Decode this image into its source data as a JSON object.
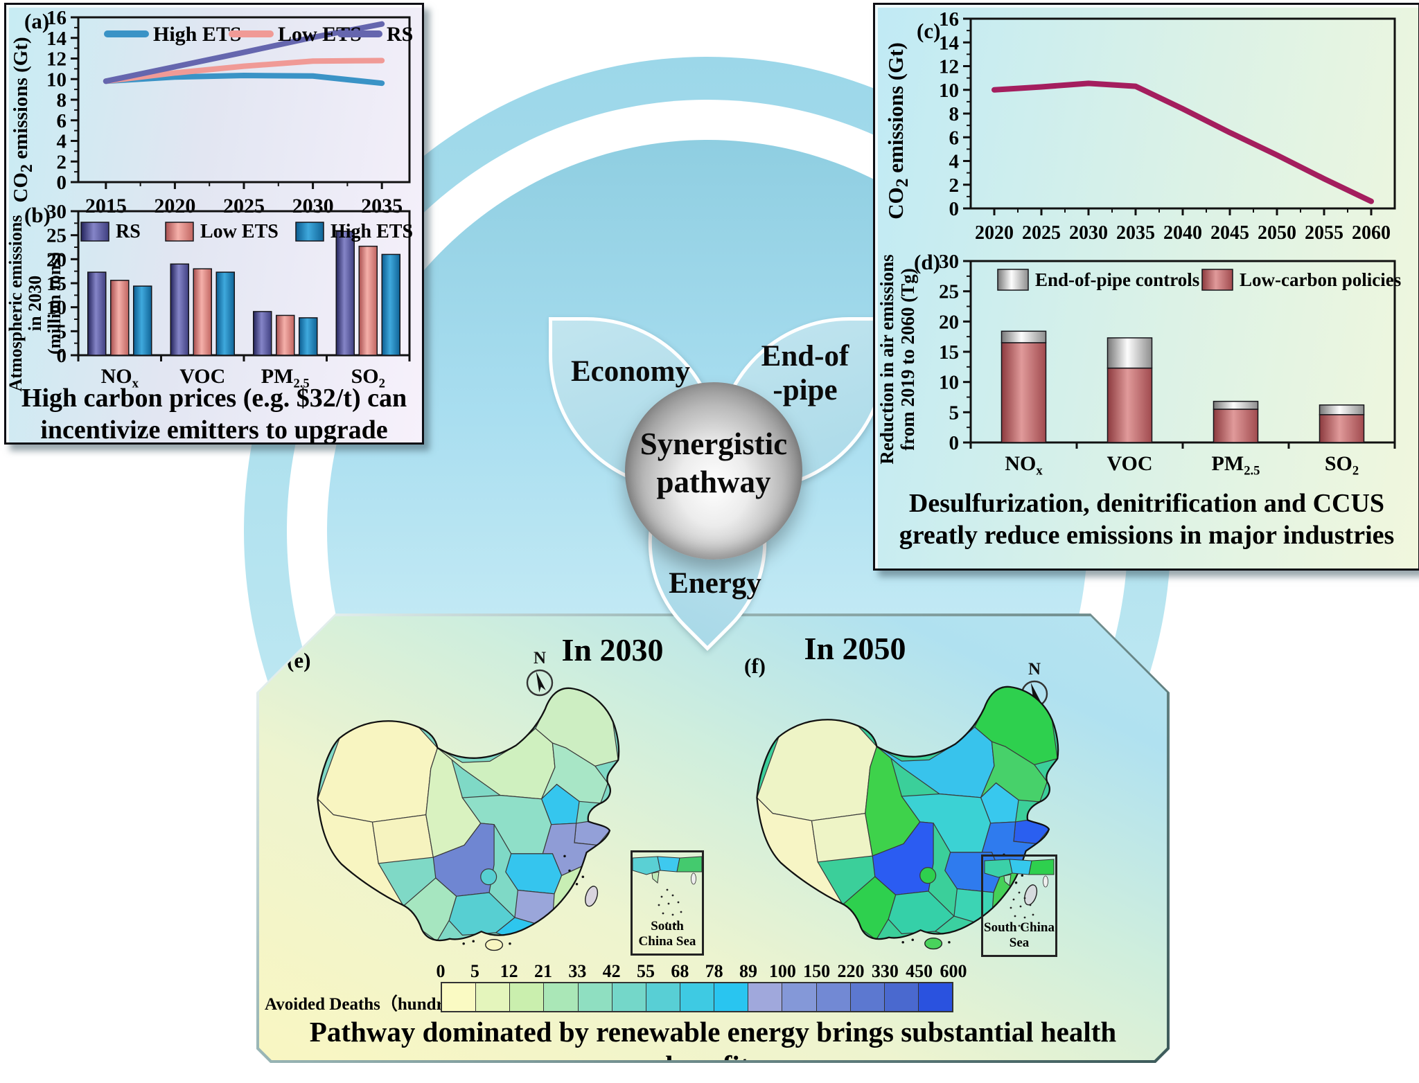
{
  "center": {
    "sphere_lines": [
      "Synergistic",
      "pathway"
    ],
    "petal_economy": "Economy",
    "petal_endpipe_lines": [
      "End-of",
      "-pipe"
    ],
    "petal_energy": "Energy"
  },
  "captions": {
    "left": "High carbon prices (e.g. $32/t) can incentivize emitters to upgrade",
    "right": "Desulfurization, denitrification and CCUS greatly reduce emissions in major industries",
    "bottom": "Pathway dominated by renewable energy brings substantial health benefits"
  },
  "chart_data": [
    {
      "id": "a",
      "type": "line",
      "panel_label": "(a)",
      "ylabel": "CO_2 emissions (Gt)",
      "x": [
        2015,
        2020,
        2025,
        2030,
        2035
      ],
      "xlim": [
        2013,
        2037
      ],
      "ylim": [
        0,
        16
      ],
      "ytick_step": 2,
      "legend_position": "top-inside",
      "grid": false,
      "series": [
        {
          "name": "High ETS",
          "color": "#3a93c6",
          "values": [
            9.8,
            10.2,
            10.35,
            10.3,
            9.6
          ]
        },
        {
          "name": "Low ETS",
          "color": "#f09a96",
          "values": [
            9.8,
            10.6,
            11.25,
            11.75,
            11.8
          ]
        },
        {
          "name": "RS",
          "color": "#6566ae",
          "values": [
            9.8,
            11.2,
            12.6,
            14.05,
            15.35
          ]
        }
      ]
    },
    {
      "id": "b",
      "type": "bar",
      "panel_label": "(b)",
      "ylabel_lines": [
        "Atmospheric emissions in 2030",
        "(million tons)"
      ],
      "categories": [
        "NO_x",
        "VOC",
        "PM_2.5",
        "SO_2"
      ],
      "ylim": [
        0,
        30
      ],
      "ytick_step": 5,
      "grid": false,
      "series": [
        {
          "name": "RS",
          "grad": [
            "#23235a",
            "#8585c8",
            "#3f3f80"
          ],
          "values": [
            17.3,
            19.0,
            9.1,
            25.8
          ]
        },
        {
          "name": "Low ETS",
          "grad": [
            "#a84f4f",
            "#f5b0aa",
            "#c06460"
          ],
          "values": [
            15.6,
            18.0,
            8.3,
            22.7
          ]
        },
        {
          "name": "High ETS",
          "grad": [
            "#0b5c90",
            "#3fa9dd",
            "#0f6396"
          ],
          "values": [
            14.4,
            17.3,
            7.8,
            21.0
          ]
        }
      ]
    },
    {
      "id": "c",
      "type": "line",
      "panel_label": "(c)",
      "ylabel": "CO_2 emissions (Gt)",
      "x": [
        2020,
        2025,
        2030,
        2035,
        2040,
        2045,
        2050,
        2055,
        2060
      ],
      "xlim": [
        2017.5,
        2062.5
      ],
      "ylim": [
        0,
        16
      ],
      "ytick_step": 2,
      "grid": false,
      "series": [
        {
          "name": "Synergistic pathway",
          "color": "#a41e5e",
          "values": [
            10.0,
            10.25,
            10.55,
            10.3,
            8.4,
            6.4,
            4.5,
            2.5,
            0.6
          ]
        }
      ]
    },
    {
      "id": "d",
      "type": "stacked-bar",
      "panel_label": "(d)",
      "ylabel_lines": [
        "Reduction in air emissions",
        "from 2019 to 2060 (Tg)"
      ],
      "categories": [
        "NO_x",
        "VOC",
        "PM_2.5",
        "SO_2"
      ],
      "ylim": [
        0,
        30
      ],
      "ytick_step": 5,
      "grid": false,
      "series": [
        {
          "name": "End-of-pipe controls",
          "grad": [
            "#777777",
            "#fdfdfd",
            "#8d8d8d"
          ],
          "values": [
            1.9,
            5.0,
            1.3,
            1.6
          ]
        },
        {
          "name": "Low-carbon policies",
          "grad": [
            "#8c3a3e",
            "#e09a9a",
            "#a04a4e"
          ],
          "values": [
            16.5,
            12.3,
            5.5,
            4.6
          ]
        }
      ],
      "stack_order_bottom_to_top": [
        "Low-carbon policies",
        "End-of-pipe controls"
      ]
    }
  ],
  "maps": {
    "legend": {
      "label": "Avoided Deaths（hundred）",
      "ticks": [
        "0",
        "5",
        "12",
        "21",
        "33",
        "42",
        "55",
        "68",
        "78",
        "89",
        "100",
        "150",
        "220",
        "330",
        "450",
        "600"
      ],
      "colors": [
        "#fafac3",
        "#e4f5bc",
        "#caefae",
        "#aae7b7",
        "#8fdfc1",
        "#74d7c9",
        "#58cfd5",
        "#3ecae3",
        "#29c5f0",
        "#a0a8dc",
        "#8498d8",
        "#7289d4",
        "#5c78d0",
        "#4a69cf",
        "#2a52df"
      ]
    },
    "e": {
      "panel_label": "(e)",
      "title": "In 2030",
      "compass": "N",
      "inset_label": "South China Sea",
      "inset_colors": [
        "#5ad0d4",
        "#3ec9ef",
        "#44ca6e",
        "#bfeab8"
      ],
      "region_colors": {
        "base": "#7fd9c6",
        "xinjiang": "#f8f5c1",
        "tibet": "#f8f5c1",
        "qinghai": "#f6f3bf",
        "gansu": "#d9f2c0",
        "inner_mongolia": "#cff0bf",
        "heilongjiang": "#cdeec2",
        "jilin_liaoning": "#a8e6c6",
        "hebei": "#35c6ee",
        "shanxi_shaanxi": "#8fdfc8",
        "shandong": "#93a0d8",
        "east": "#8f9cd6",
        "henan_hubei": "#35c5ee",
        "hunan_jiangxi": "#9aa6da",
        "sichuan": "#6f86d2",
        "chongqing": "#57cfd2",
        "southwest": "#57cfd2",
        "yunnan": "#a6e6c0",
        "fujian_zhejiang": "#c8eeb4",
        "guangdong": "#2ec6ee",
        "taiwan": "#d9d4de",
        "hainan": "#f8f5c1"
      }
    },
    "f": {
      "panel_label": "(f)",
      "title": "In 2050",
      "compass": "N",
      "inset_label": "South China Sea",
      "inset_colors": [
        "#3bd0a8",
        "#35c8ec",
        "#2ed04e",
        "#a5e6c0"
      ],
      "region_colors": {
        "base": "#3bcf9a",
        "xinjiang": "#eef4c6",
        "tibet": "#f7f5c5",
        "qinghai": "#eef4c6",
        "gansu": "#3ed24b",
        "inner_mongolia": "#38c3ec",
        "heilongjiang": "#2ed04e",
        "jilin_liaoning": "#47d16a",
        "hebei": "#38c8ee",
        "shanxi_shaanxi": "#3bd2d4",
        "shandong": "#2a5ff0",
        "east": "#2f7bee",
        "henan_hubei": "#2f7bee",
        "hunan_jiangxi": "#3cd4b4",
        "sichuan": "#2b5cf2",
        "chongqing": "#2ed04e",
        "southwest": "#35d0a8",
        "yunnan": "#2ed04e",
        "fujian_zhejiang": "#45d158",
        "guangdong": "#3bd0a0",
        "taiwan": "#d6dbde",
        "hainan": "#49d35c"
      }
    }
  }
}
